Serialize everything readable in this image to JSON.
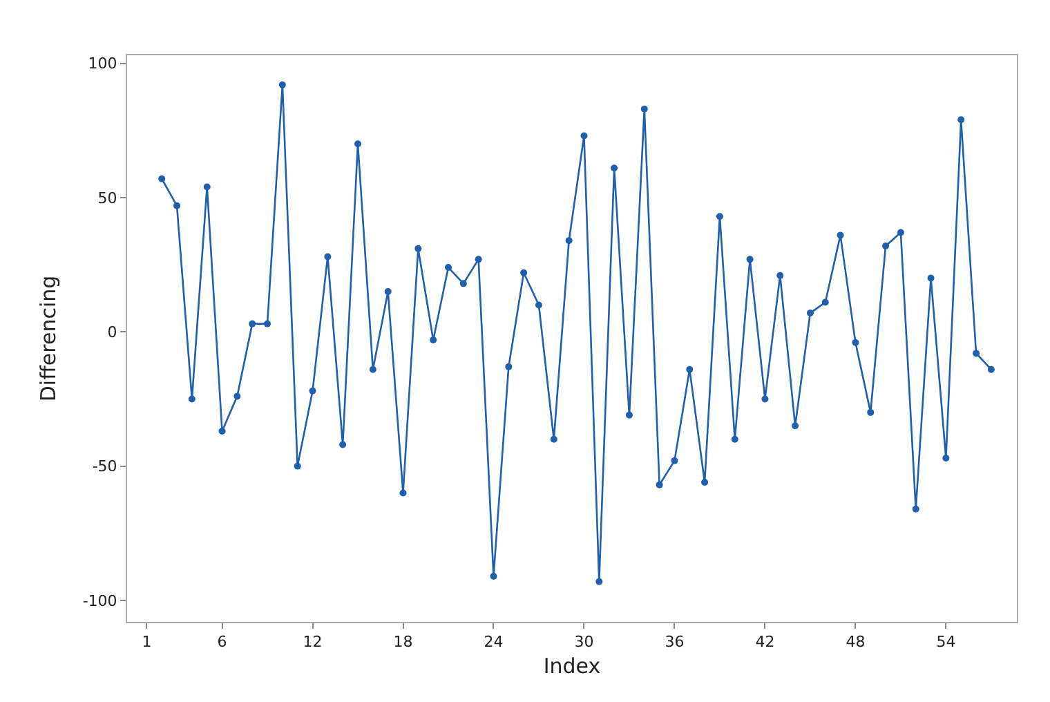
{
  "chart_data": {
    "type": "line",
    "xlabel": "Index",
    "ylabel": "Differencing",
    "x": [
      2,
      3,
      4,
      5,
      6,
      7,
      8,
      9,
      10,
      11,
      12,
      13,
      14,
      15,
      16,
      17,
      18,
      19,
      20,
      21,
      22,
      23,
      24,
      25,
      26,
      27,
      28,
      29,
      30,
      31,
      32,
      33,
      34,
      35,
      36,
      37,
      38,
      39,
      40,
      41,
      42,
      43,
      44,
      45,
      46,
      47,
      48,
      49,
      50,
      51,
      52,
      53,
      54,
      55,
      56,
      57
    ],
    "series": [
      {
        "color": "#1f5fad",
        "values": [
          57,
          47,
          -25,
          54,
          -37,
          -24,
          3,
          3,
          92,
          -50,
          -22,
          28,
          -42,
          70,
          -14,
          15,
          -60,
          31,
          -3,
          24,
          18,
          27,
          -91,
          -13,
          22,
          10,
          -40,
          34,
          73,
          -93,
          61,
          -31,
          83,
          -57,
          -48,
          -14,
          -56,
          43,
          -40,
          27,
          -25,
          21,
          -35,
          7,
          11,
          36,
          -4,
          -30,
          32,
          37,
          -66,
          20,
          -47,
          79,
          -8,
          -14
        ]
      }
    ],
    "xlim": [
      -0.3,
      58.7
    ],
    "ylim": [
      -108,
      103
    ],
    "xticks": [
      1,
      6,
      12,
      18,
      24,
      30,
      36,
      42,
      48,
      54
    ],
    "yticks": [
      -100,
      -50,
      0,
      50,
      100
    ],
    "marker": "circle",
    "line_style": "solid"
  }
}
